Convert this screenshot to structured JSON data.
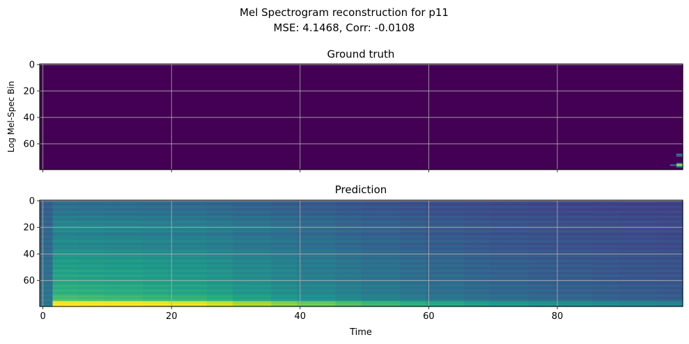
{
  "figure": {
    "title": "Mel Spectrogram reconstruction for p11",
    "subtitle": "MSE: 4.1468, Corr: -0.0108"
  },
  "colormap": [
    "#440154",
    "#482878",
    "#3e4989",
    "#31688e",
    "#26828e",
    "#1f9e89",
    "#35b779",
    "#6ece58",
    "#b5de2b",
    "#fde725"
  ],
  "chart_data": [
    {
      "type": "heatmap",
      "title": "Ground truth",
      "xlabel": "",
      "ylabel": "Log Mel-Spec Bin",
      "xlim": [
        -0.5,
        99.5
      ],
      "ylim": [
        79.5,
        -0.5
      ],
      "y_inverted": true,
      "xticks": [
        0,
        20,
        40,
        60,
        80
      ],
      "yticks": [
        0,
        20,
        40,
        60
      ],
      "show_xticklabels": false,
      "grid": true,
      "n_time": 100,
      "n_bins": 80,
      "background_level": 0.0,
      "hotspots": [
        {
          "time": 99,
          "bin": 68,
          "level": 0.45
        },
        {
          "time": 99,
          "bin": 69,
          "level": 0.3
        },
        {
          "time": 99,
          "bin": 75,
          "level": 0.55
        },
        {
          "time": 99,
          "bin": 76,
          "level": 0.95
        },
        {
          "time": 99,
          "bin": 77,
          "level": 0.5
        },
        {
          "time": 98,
          "bin": 76,
          "level": 0.3
        }
      ]
    },
    {
      "type": "heatmap",
      "title": "Prediction",
      "xlabel": "Time",
      "ylabel": "",
      "xlim": [
        -0.5,
        99.5
      ],
      "ylim": [
        79.5,
        -0.5
      ],
      "y_inverted": true,
      "xticks": [
        0,
        20,
        40,
        60,
        80
      ],
      "yticks": [
        0,
        20,
        40,
        60
      ],
      "show_xticklabels": true,
      "grid": true,
      "n_time": 100,
      "n_bins": 80,
      "description_profile": {
        "bin_profile_start": [
          0.42,
          0.45,
          0.46,
          0.5,
          0.54,
          0.55,
          0.5,
          0.55,
          0.52,
          0.56,
          0.58,
          0.6,
          0.6,
          0.62,
          0.62,
          0.63,
          0.65,
          0.66,
          0.72,
          0.98
        ],
        "time_profile": [
          1.0,
          0.98,
          0.96,
          0.93,
          0.9,
          0.85,
          0.78,
          0.72,
          0.66,
          0.6,
          0.55,
          0.5,
          0.46,
          0.42,
          0.39,
          0.36,
          0.34,
          0.32,
          0.3,
          0.28
        ],
        "floor_level": 0.14,
        "column0_level": 0.3
      }
    }
  ]
}
